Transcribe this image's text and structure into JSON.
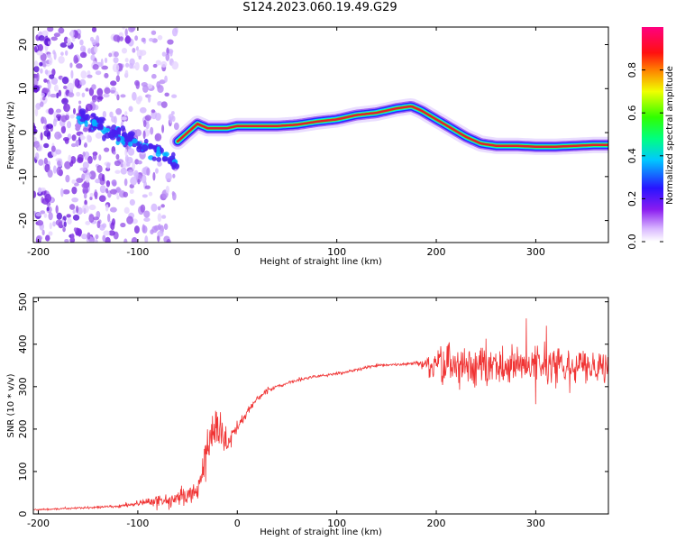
{
  "title": "S124.2023.060.19.49.G29",
  "colors": {
    "snr_line": "#f03434",
    "spectral_ridge": "#e0202a",
    "axes": "#000000"
  },
  "chart_data": [
    {
      "type": "heatmap",
      "xlabel": "Height of straight line (km)",
      "ylabel": "Frequency (Hz)",
      "xlim": [
        -205,
        373
      ],
      "ylim": [
        -25,
        24
      ],
      "xticks": [
        -200,
        -100,
        0,
        100,
        200,
        300
      ],
      "yticks": [
        -20,
        -10,
        0,
        10,
        20
      ],
      "colorbar": {
        "label": "Normalized spectral amplitude",
        "range": [
          0.0,
          1.0
        ],
        "ticks": [
          0.0,
          0.2,
          0.4,
          0.6,
          0.8
        ],
        "colormap": "rainbow (white-violet-blue-cyan-green-yellow-red-magenta)"
      },
      "ridge": {
        "x": [
          -60,
          -50,
          -40,
          -30,
          -20,
          -10,
          0,
          20,
          40,
          60,
          80,
          100,
          120,
          140,
          160,
          175,
          185,
          200,
          215,
          230,
          245,
          260,
          280,
          300,
          320,
          340,
          360,
          373
        ],
        "y": [
          -2,
          0,
          2,
          1,
          1,
          1,
          1.5,
          1.5,
          1.5,
          1.8,
          2.5,
          3,
          4,
          4.5,
          5.5,
          6,
          5,
          3,
          1,
          -1,
          -2.5,
          -3,
          -3,
          -3.2,
          -3.2,
          -3,
          -2.8,
          -2.8
        ]
      },
      "scatter_region": {
        "x_range": [
          -205,
          -60
        ],
        "y_range": [
          -25,
          24
        ]
      }
    },
    {
      "type": "line",
      "xlabel": "Height of straight line (km)",
      "ylabel": "SNR (10 * v/v)",
      "xlim": [
        -205,
        373
      ],
      "ylim": [
        0,
        510
      ],
      "xticks": [
        -200,
        -100,
        0,
        100,
        200,
        300
      ],
      "yticks": [
        0,
        100,
        200,
        300,
        400,
        500
      ],
      "series": [
        {
          "x": [
            -205,
            -180,
            -160,
            -140,
            -120,
            -105,
            -90,
            -80,
            -70,
            -60,
            -50,
            -40,
            -35,
            -30,
            -25,
            -20,
            -15,
            -10,
            -5,
            0,
            10,
            20,
            30,
            40,
            60,
            80,
            100,
            120,
            140,
            160,
            180,
            195,
            210,
            230,
            250,
            270,
            290,
            310,
            330,
            350,
            373
          ],
          "y": [
            10,
            12,
            14,
            16,
            18,
            22,
            28,
            30,
            32,
            36,
            45,
            65,
            100,
            150,
            190,
            220,
            180,
            170,
            190,
            200,
            240,
            270,
            290,
            300,
            315,
            325,
            330,
            340,
            350,
            352,
            355,
            350,
            345,
            350,
            350,
            350,
            348,
            350,
            352,
            350,
            350
          ],
          "noise": [
            2,
            3,
            3,
            4,
            5,
            8,
            15,
            20,
            25,
            25,
            30,
            40,
            60,
            80,
            90,
            80,
            60,
            40,
            30,
            25,
            15,
            10,
            8,
            6,
            5,
            5,
            5,
            5,
            5,
            5,
            8,
            40,
            80,
            80,
            80,
            75,
            70,
            60,
            60,
            60,
            60
          ]
        }
      ]
    }
  ]
}
